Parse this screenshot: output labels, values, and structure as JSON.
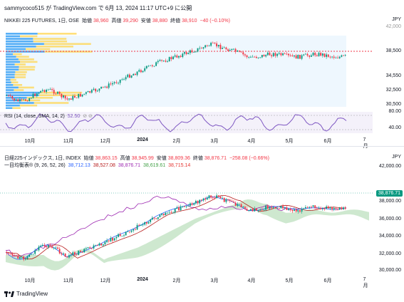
{
  "header": {
    "text": "sammycoco515 が TradingView.com で 6月 13, 2024 11:17 UTC+9 に公開"
  },
  "top": {
    "title": "NIKKEI 225 FUTURES, 1日, OSE",
    "open_label": "始値",
    "open": "38,960",
    "high_label": "高値",
    "high": "39,290",
    "low_label": "安値",
    "low": "38,880",
    "close_label": "終値",
    "close": "38,910",
    "change": "−40 (−0.10%)",
    "currency": "JPY",
    "axis": [
      "42,000",
      "38,500",
      "34,550",
      "32,500",
      "30,500"
    ],
    "rsi_label": "RSI (14, close, SMA, 14, 2)",
    "rsi_value": "52.50",
    "rsi_axis": [
      "80.00",
      "40.00"
    ]
  },
  "bottom": {
    "title": "日経225インデックス, 1日, INDEX",
    "open_label": "始値",
    "open": "38,863.15",
    "high_label": "高値",
    "high": "38,945.99",
    "low_label": "安値",
    "low": "38,809.36",
    "close_label": "終値",
    "close": "38,876.71",
    "change": "−258.08 (−0.66%)",
    "ichimoku_label": "一目均衡表® (9, 26, 52, 26)",
    "ichimoku_values": [
      "38,712.13",
      "38,527.08",
      "38,876.71",
      "38,619.61",
      "38,715.14"
    ],
    "currency": "JPY",
    "price_badge": "38,876.71",
    "axis": [
      "42,000.00",
      "38,000.00",
      "36,000.00",
      "34,000.00",
      "32,000.00",
      "30,000.00"
    ]
  },
  "x_axis": [
    "10月",
    "11月",
    "12月",
    "2024",
    "2月",
    "3月",
    "4月",
    "5月",
    "6月",
    "7月"
  ],
  "brand": "TradingView",
  "colors": {
    "up": "#089981",
    "down": "#f23645",
    "rsi": "#7e57c2",
    "tenkan": "#2962ff",
    "kijun": "#b71c1c",
    "lagging": "#9c27b0",
    "cloud_up": "#a5d6a7",
    "cloud_down": "#ef9a9a"
  }
}
